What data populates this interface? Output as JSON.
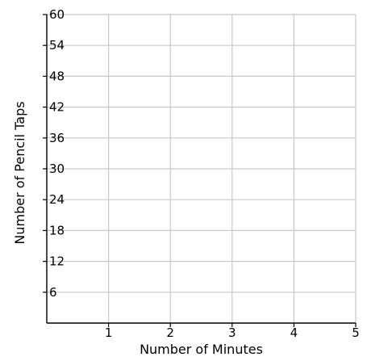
{
  "chart_data": {
    "type": "line",
    "title": "",
    "xlabel": "Number of Minutes",
    "ylabel": "Number of Pencil Taps",
    "xlim": [
      0,
      5
    ],
    "ylim": [
      0,
      60
    ],
    "x_ticks": [
      1,
      2,
      3,
      4,
      5
    ],
    "y_ticks": [
      6,
      12,
      18,
      24,
      30,
      36,
      42,
      48,
      54,
      60
    ],
    "grid": true,
    "series": []
  }
}
